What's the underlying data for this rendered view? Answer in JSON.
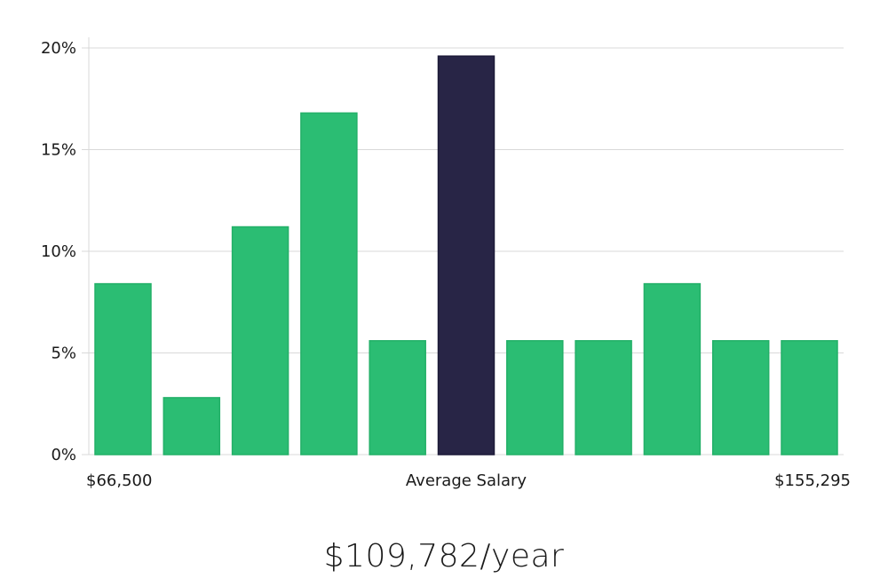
{
  "chart_data": {
    "type": "bar",
    "title": "",
    "xlabel": "",
    "ylabel": "",
    "ylim": [
      0,
      20
    ],
    "y_ticks": [
      "0%",
      "5%",
      "10%",
      "15%",
      "20%"
    ],
    "y_tick_values": [
      0,
      5,
      10,
      15,
      20
    ],
    "grid": true,
    "values": [
      8.4,
      2.8,
      11.2,
      16.8,
      5.6,
      19.6,
      5.6,
      5.6,
      8.4,
      5.6,
      5.6
    ],
    "highlight_index": 5,
    "colors": {
      "bar": "#2bbd73",
      "highlight": "#282546",
      "grid": "#d9d9d9"
    },
    "x_labels": {
      "min": "$66,500",
      "center": "Average Salary",
      "max": "$155,295"
    }
  },
  "summary": {
    "average_salary": "$109,782/year"
  }
}
